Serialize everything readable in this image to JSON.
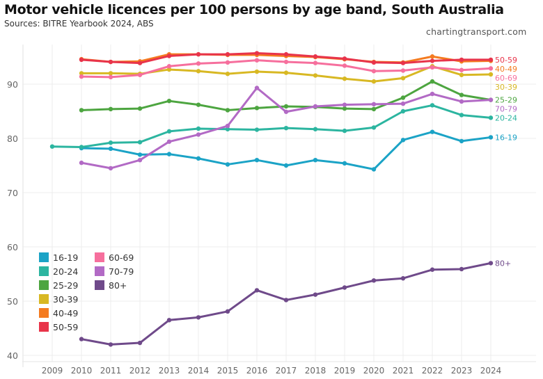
{
  "header": {
    "title": "Motor vehicle licences per 100 persons by age band, South Australia",
    "subtitle": "Sources: BITRE Yearbook 2024, ABS",
    "credit": "chartingtransport.com"
  },
  "chart_data": {
    "type": "line",
    "title": "Motor vehicle licences per 100 persons by age band, South Australia",
    "subtitle": "Sources: BITRE Yearbook 2024, ABS",
    "xlabel": "",
    "ylabel": "",
    "x": [
      2009,
      2010,
      2011,
      2012,
      2013,
      2014,
      2015,
      2016,
      2017,
      2018,
      2019,
      2020,
      2021,
      2022,
      2023,
      2024
    ],
    "x_tick_labels": [
      "2009",
      "2010",
      "2011",
      "2012",
      "2013",
      "2014",
      "2015",
      "2016",
      "2017",
      "2018",
      "2019",
      "2020",
      "2021",
      "2022",
      "2023",
      "2024"
    ],
    "y_ticks": [
      40,
      50,
      60,
      70,
      80,
      90
    ],
    "y_tick_labels": [
      "40",
      "50",
      "60",
      "70",
      "80",
      "90"
    ],
    "ylim": [
      39,
      97
    ],
    "xlim": [
      2008.2,
      2025
    ],
    "grid": true,
    "legend_position": "bottom-left",
    "series": [
      {
        "name": "16-19",
        "color": "#1ba3c6",
        "end_label": "16-19",
        "values": [
          null,
          78.2,
          78.1,
          77.0,
          77.1,
          76.3,
          75.2,
          76.0,
          75.0,
          76.0,
          75.4,
          74.3,
          79.7,
          81.2,
          79.5,
          80.2
        ]
      },
      {
        "name": "20-24",
        "color": "#2cb5a0",
        "end_label": "20-24",
        "values": [
          78.5,
          78.4,
          79.2,
          79.3,
          81.3,
          81.8,
          81.7,
          81.6,
          81.9,
          81.7,
          81.4,
          82.0,
          85.0,
          86.1,
          84.3,
          83.8
        ]
      },
      {
        "name": "25-29",
        "color": "#4da540",
        "end_label": "25-29",
        "values": [
          null,
          85.2,
          85.4,
          85.5,
          86.9,
          86.2,
          85.2,
          85.6,
          85.9,
          85.8,
          85.5,
          85.4,
          87.5,
          90.5,
          88.0,
          87.1
        ]
      },
      {
        "name": "30-39",
        "color": "#d8b823",
        "end_label": "30-39",
        "values": [
          null,
          92.0,
          92.0,
          91.9,
          92.7,
          92.4,
          91.9,
          92.3,
          92.1,
          91.6,
          91.0,
          90.5,
          91.1,
          93.3,
          91.7,
          91.8
        ]
      },
      {
        "name": "40-49",
        "color": "#f47b20",
        "end_label": "40-49",
        "values": [
          null,
          94.6,
          94.1,
          94.2,
          95.5,
          95.5,
          95.4,
          95.4,
          95.2,
          95.0,
          94.6,
          94.1,
          94.0,
          95.1,
          94.2,
          94.3
        ]
      },
      {
        "name": "50-59",
        "color": "#e8344a",
        "end_label": "50-59",
        "values": [
          null,
          94.5,
          94.1,
          93.9,
          95.2,
          95.5,
          95.5,
          95.7,
          95.5,
          95.1,
          94.7,
          94.0,
          93.9,
          94.3,
          94.5,
          94.5
        ]
      },
      {
        "name": "60-69",
        "color": "#f66f9d",
        "end_label": "60-69",
        "values": [
          null,
          91.4,
          91.3,
          91.7,
          93.3,
          93.8,
          94.0,
          94.4,
          94.1,
          93.9,
          93.4,
          92.4,
          92.5,
          93.1,
          92.6,
          92.9
        ]
      },
      {
        "name": "70-79",
        "color": "#b26ac5",
        "end_label": "70-79",
        "values": [
          null,
          75.5,
          74.5,
          76.0,
          79.4,
          80.7,
          82.3,
          89.3,
          84.9,
          85.9,
          86.2,
          86.3,
          86.4,
          88.2,
          86.8,
          87.1
        ]
      },
      {
        "name": "80+",
        "color": "#6f4a8a",
        "end_label": "80+",
        "values": [
          null,
          43.0,
          42.0,
          42.3,
          46.5,
          47.0,
          48.1,
          52.0,
          50.2,
          51.2,
          52.5,
          53.8,
          54.2,
          55.8,
          55.9,
          57.0
        ]
      }
    ]
  },
  "legend": {
    "items": [
      {
        "label": "16-19",
        "color": "#1ba3c6"
      },
      {
        "label": "20-24",
        "color": "#2cb5a0"
      },
      {
        "label": "25-29",
        "color": "#4da540"
      },
      {
        "label": "30-39",
        "color": "#d8b823"
      },
      {
        "label": "40-49",
        "color": "#f47b20"
      },
      {
        "label": "50-59",
        "color": "#e8344a"
      },
      {
        "label": "60-69",
        "color": "#f66f9d"
      },
      {
        "label": "70-79",
        "color": "#b26ac5"
      },
      {
        "label": "80+",
        "color": "#6f4a8a"
      }
    ]
  }
}
